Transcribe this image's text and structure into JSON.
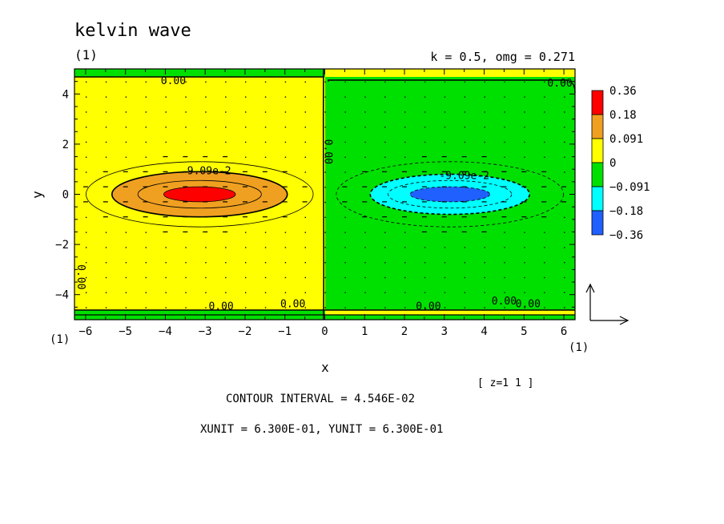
{
  "chart_data": {
    "type": "heatmap",
    "title": "kelvin wave",
    "subtitle_left": "(1)",
    "subtitle_right": "k = 0.5, omg = 0.271",
    "xlabel": "x",
    "ylabel": "y",
    "xlim": [
      -6.28,
      6.28
    ],
    "ylim": [
      -5,
      5
    ],
    "xticks": [
      -6,
      -5,
      -4,
      -3,
      -2,
      -1,
      0,
      1,
      2,
      3,
      4,
      5,
      6
    ],
    "yticks": [
      -4,
      -2,
      0,
      2,
      4
    ],
    "corner_label_left": "(1)",
    "corner_label_right": "(1)",
    "levels_label": "[ z=1 1 ]",
    "contour_interval_text": "CONTOUR INTERVAL = 4.546E-02",
    "unit_text": "XUNIT = 6.300E-01, YUNIT = 6.300E-01",
    "legend": {
      "labels": [
        "0.36",
        "0.18",
        "0.091",
        "0",
        "-0.091",
        "-0.18",
        "-0.36"
      ],
      "colors": [
        "#ff0000",
        "#f0a020",
        "#ffff00",
        "#00e000",
        "#00ffff",
        "#2060ff"
      ]
    },
    "contour_labels": [
      {
        "text": "0.00",
        "x": -3.8,
        "y": 4.4
      },
      {
        "text": "0.00",
        "x": 5.9,
        "y": 4.3
      },
      {
        "text": "0.00",
        "x": 0.0,
        "y": 1.7
      },
      {
        "text": "0.00",
        "x": -6.2,
        "y": -3.3
      },
      {
        "text": "0.00",
        "x": -2.6,
        "y": -4.6
      },
      {
        "text": "0.00",
        "x": -0.8,
        "y": -4.5
      },
      {
        "text": "0.00",
        "x": 2.6,
        "y": -4.6
      },
      {
        "text": "0.00",
        "x": 4.5,
        "y": -4.4
      },
      {
        "text": "0.00",
        "x": 5.1,
        "y": -4.5
      },
      {
        "text": "9.09e-2",
        "x": -2.9,
        "y": 0.8
      },
      {
        "text": "-9.09e-2",
        "x": 3.5,
        "y": 0.6
      }
    ],
    "field": {
      "positive_center": [
        -3.14,
        0
      ],
      "negative_center": [
        3.14,
        0
      ],
      "peak_amplitude": 0.36
    }
  }
}
